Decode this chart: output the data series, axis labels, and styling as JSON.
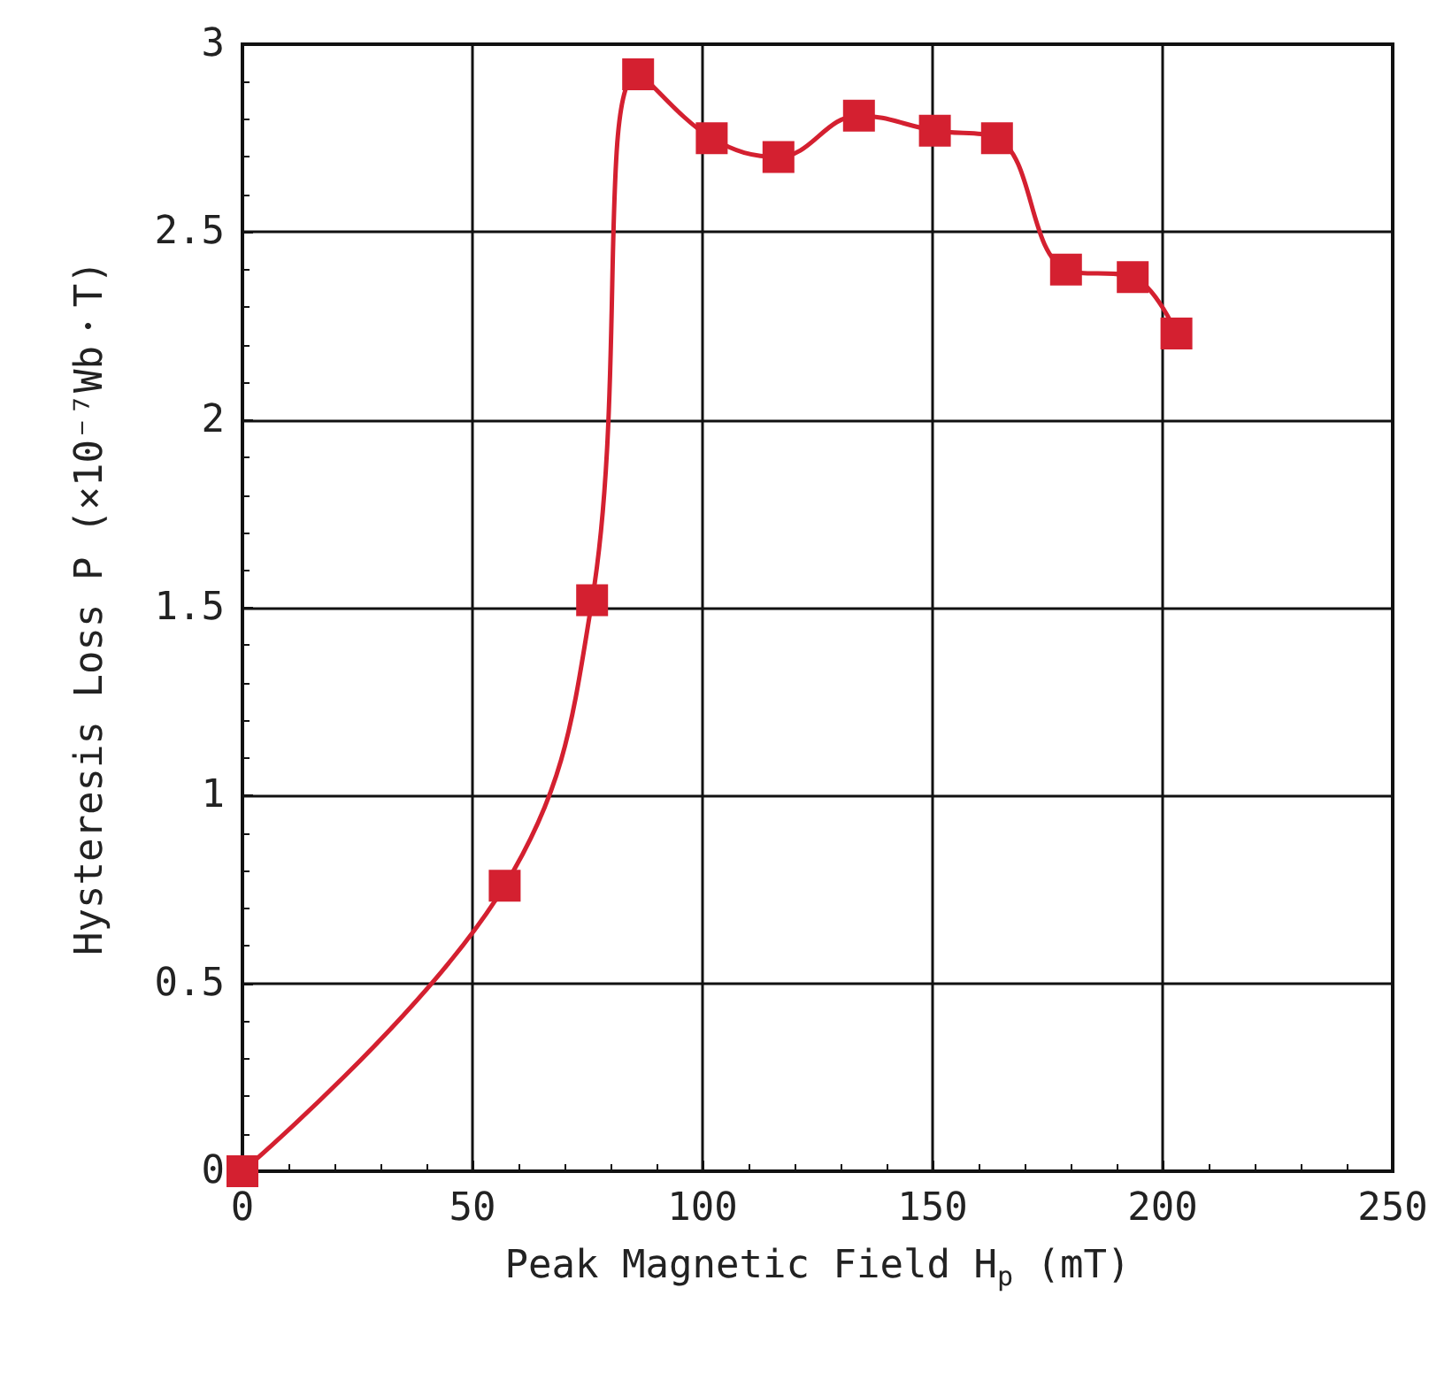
{
  "chart_data": {
    "type": "line",
    "xlabel": "Peak Magnetic Field H$_{p}$ (mT)",
    "ylabel": "Hysteresis Loss P (×10⁻⁷Wb・T)",
    "series": [
      {
        "color": "#d42030",
        "x": [
          0,
          57,
          76,
          86,
          102,
          116.5,
          134,
          150.5,
          164,
          179,
          193.5,
          203
        ],
        "values": [
          0,
          0.76,
          1.52,
          2.92,
          2.75,
          2.7,
          2.81,
          2.77,
          2.75,
          2.4,
          2.38,
          2.23
        ]
      }
    ],
    "xlim": [
      0,
      250
    ],
    "xticks": [
      0,
      50,
      100,
      150,
      200,
      250
    ],
    "ylim": [
      0,
      3
    ],
    "yticks": [
      0,
      0.5,
      1,
      1.5,
      2,
      2.5,
      3
    ],
    "grid": true,
    "marker": "square",
    "line_style": "solid"
  }
}
